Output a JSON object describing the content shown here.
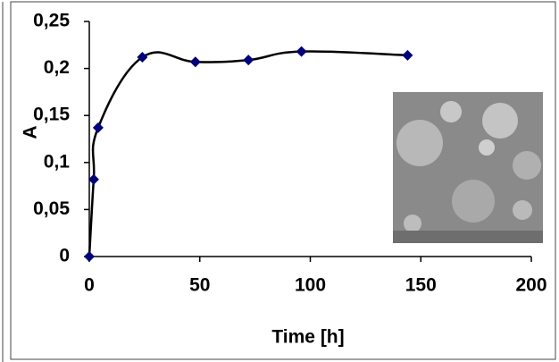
{
  "chart_data": {
    "type": "line",
    "x_label": "Time [h]",
    "y_label": "A",
    "x": [
      0,
      2,
      4,
      24,
      48,
      72,
      96,
      144
    ],
    "series": [
      {
        "color": "#00007a",
        "values": [
          0,
          0.082,
          0.137,
          0.212,
          0.207,
          0.209,
          0.218,
          0.214
        ]
      }
    ],
    "xlim": [
      0,
      200
    ],
    "xticks": [
      0,
      50,
      100,
      150,
      200
    ],
    "ylim": [
      0,
      0.25
    ],
    "yticks": [
      0,
      {
        "value": 0.05,
        "label": "0,05"
      },
      {
        "value": 0.1,
        "label": "0,1"
      },
      {
        "value": 0.15,
        "label": "0,15"
      },
      {
        "value": 0.2,
        "label": "0,2"
      },
      {
        "value": 0.25,
        "label": "0,25"
      }
    ]
  }
}
